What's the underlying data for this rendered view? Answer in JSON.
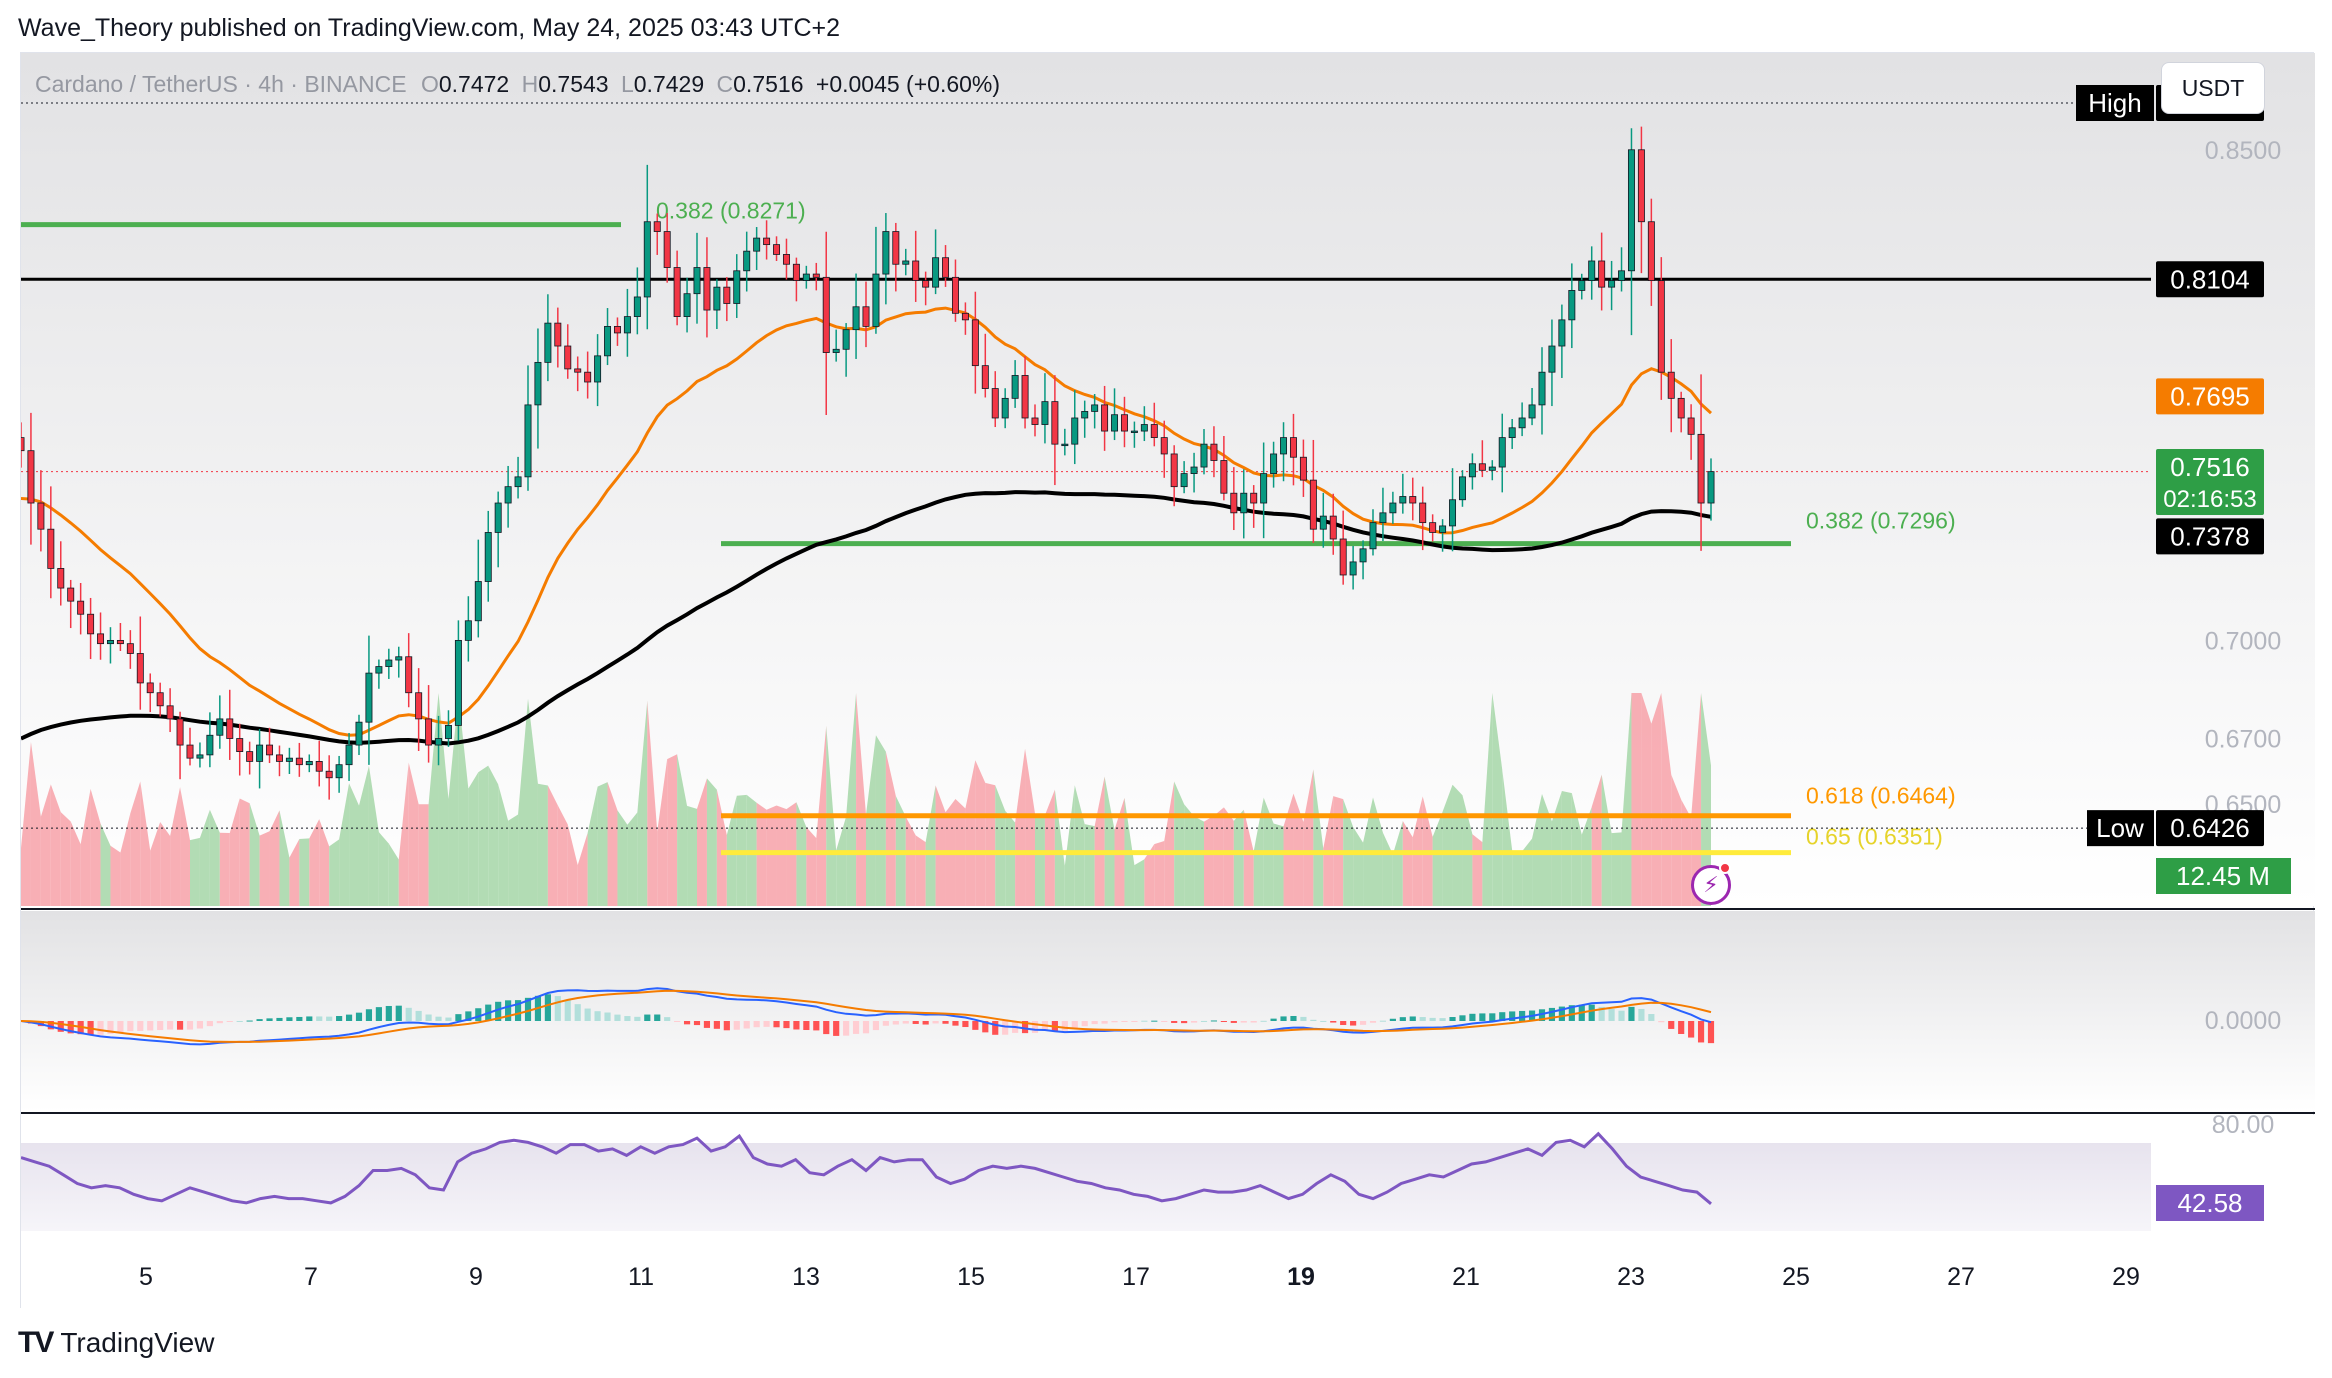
{
  "header": {
    "published": "Wave_Theory published on TradingView.com, May 24, 2025 03:43 UTC+2"
  },
  "legend": {
    "symbol": "Cardano / TetherUS · 4h · BINANCE",
    "open_label": "O",
    "open": "0.7472",
    "high_label": "H",
    "high": "0.7543",
    "low_label": "L",
    "low": "0.7429",
    "close_label": "C",
    "close": "0.7516",
    "change": "+0.0045 (+0.60%)"
  },
  "currency_button": "USDT",
  "footer": {
    "logo": "TV",
    "brand": "TradingView"
  },
  "colors": {
    "up": "#26a69a",
    "up_candle": "#089981",
    "down": "#f23645",
    "ema_orange": "#f57c00",
    "ema_black": "#000000",
    "fib_green": "#4caf50",
    "fib_orange": "#ff9800",
    "fib_yellow": "#ffeb3b",
    "rsi": "#7e57c2",
    "macd": "#2962ff"
  },
  "chart_data": [
    {
      "type": "candlestick",
      "pane": "price",
      "ylim": [
        0.635,
        0.875
      ],
      "x_ticks": [
        "5",
        "7",
        "9",
        "11",
        "13",
        "15",
        "17",
        "19",
        "21",
        "23",
        "25",
        "27",
        "29"
      ],
      "y_ticks": [
        "0.8500",
        "0.7000",
        "0.6700",
        "0.6500"
      ],
      "price_labels": [
        {
          "label": "High",
          "value": "0.8643"
        },
        {
          "label": "",
          "value": "0.8104"
        },
        {
          "label": "",
          "value": "0.7695"
        },
        {
          "label": "",
          "value": "0.7516",
          "sub": "02:16:53"
        },
        {
          "label": "",
          "value": "0.7378"
        },
        {
          "label": "Low",
          "value": "0.6426"
        }
      ],
      "fib_levels": [
        {
          "label": "0.382 (0.8271)",
          "value": 0.8271
        },
        {
          "label": "0.382 (0.7296)",
          "value": 0.7296
        },
        {
          "label": "0.618 (0.6464)",
          "value": 0.6464
        },
        {
          "label": "0.65 (0.6351)",
          "value": 0.6351
        }
      ],
      "horizontal_lines": [
        {
          "name": "resistance",
          "value": 0.8104
        },
        {
          "name": "session-high",
          "value": 0.8643
        },
        {
          "name": "session-low",
          "value": 0.6426
        },
        {
          "name": "last-price",
          "value": 0.7516
        }
      ],
      "closes": [
        0.758,
        0.742,
        0.734,
        0.722,
        0.716,
        0.712,
        0.708,
        0.702,
        0.699,
        0.7,
        0.699,
        0.696,
        0.687,
        0.684,
        0.68,
        0.676,
        0.668,
        0.664,
        0.665,
        0.671,
        0.676,
        0.67,
        0.666,
        0.663,
        0.668,
        0.665,
        0.663,
        0.664,
        0.662,
        0.663,
        0.66,
        0.658,
        0.662,
        0.668,
        0.675,
        0.69,
        0.692,
        0.694,
        0.695,
        0.684,
        0.676,
        0.668,
        0.67,
        0.674,
        0.7,
        0.706,
        0.718,
        0.733,
        0.742,
        0.747,
        0.75,
        0.772,
        0.785,
        0.797,
        0.79,
        0.783,
        0.782,
        0.779,
        0.787,
        0.796,
        0.794,
        0.799,
        0.805,
        0.828,
        0.825,
        0.814,
        0.799,
        0.806,
        0.814,
        0.801,
        0.808,
        0.803,
        0.813,
        0.819,
        0.823,
        0.821,
        0.818,
        0.815,
        0.81,
        0.812,
        0.811,
        0.788,
        0.789,
        0.795,
        0.802,
        0.796,
        0.812,
        0.825,
        0.815,
        0.816,
        0.81,
        0.808,
        0.817,
        0.811,
        0.8,
        0.798,
        0.784,
        0.777,
        0.768,
        0.774,
        0.781,
        0.768,
        0.766,
        0.773,
        0.76,
        0.76,
        0.768,
        0.77,
        0.772,
        0.764,
        0.769,
        0.764,
        0.764,
        0.766,
        0.762,
        0.757,
        0.747,
        0.751,
        0.753,
        0.76,
        0.755,
        0.745,
        0.739,
        0.745,
        0.742,
        0.751,
        0.757,
        0.762,
        0.756,
        0.749,
        0.734,
        0.738,
        0.731,
        0.72,
        0.724,
        0.728,
        0.736,
        0.739,
        0.742,
        0.744,
        0.742,
        0.736,
        0.733,
        0.735,
        0.743,
        0.75,
        0.754,
        0.752,
        0.753,
        0.762,
        0.765,
        0.768,
        0.772,
        0.782,
        0.79,
        0.798,
        0.807,
        0.81,
        0.816,
        0.808,
        0.81,
        0.813,
        0.85,
        0.828,
        0.81,
        0.782,
        0.774,
        0.768,
        0.763,
        0.742,
        0.7516
      ],
      "ema_orange_last": 0.7695,
      "ema_black_last": 0.7378
    },
    {
      "type": "area",
      "pane": "volume",
      "label": "12.45 M"
    },
    {
      "type": "histogram",
      "pane": "macd",
      "y_ticks": [
        "0.0000"
      ]
    },
    {
      "type": "line",
      "pane": "rsi",
      "y_ticks": [
        "80.00"
      ],
      "last_label": "42.58",
      "values": [
        64,
        62,
        60,
        56,
        52,
        50,
        51,
        50,
        47,
        45,
        44,
        47,
        50,
        48,
        46,
        44,
        43,
        45,
        46,
        45,
        45,
        44,
        43,
        46,
        51,
        58,
        58,
        59,
        56,
        50,
        49,
        62,
        66,
        68,
        71,
        72,
        71,
        69,
        66,
        70,
        70,
        67,
        68,
        65,
        69,
        66,
        69,
        70,
        73,
        67,
        69,
        74,
        64,
        61,
        60,
        63,
        57,
        56,
        60,
        63,
        58,
        64,
        62,
        63,
        63,
        55,
        52,
        54,
        58,
        60,
        59,
        60,
        59,
        57,
        55,
        53,
        52,
        50,
        49,
        47,
        46,
        44,
        45,
        47,
        49,
        48,
        48,
        49,
        51,
        48,
        45,
        47,
        52,
        56,
        53,
        47,
        45,
        48,
        52,
        54,
        56,
        55,
        58,
        61,
        62,
        64,
        66,
        68,
        65,
        71,
        72,
        69,
        75,
        68,
        60,
        55,
        53,
        51,
        49,
        48,
        42.58
      ]
    }
  ]
}
